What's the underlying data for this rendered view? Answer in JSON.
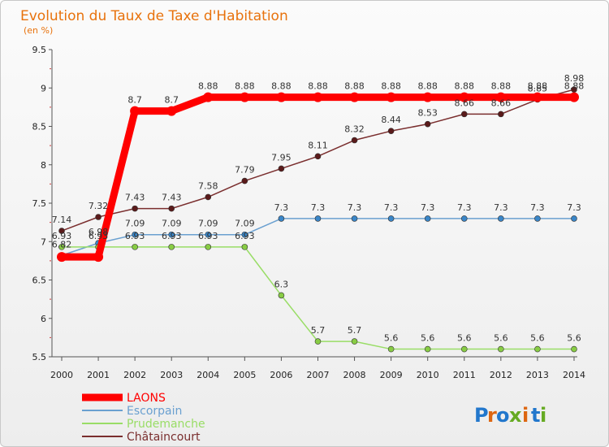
{
  "chart_data": {
    "type": "line",
    "title": "Evolution du Taux de Taxe d'Habitation",
    "subtitle": "(en %)",
    "xlabel": "",
    "ylabel": "",
    "x": [
      2000,
      2001,
      2002,
      2003,
      2004,
      2005,
      2006,
      2007,
      2008,
      2009,
      2010,
      2011,
      2012,
      2013,
      2014
    ],
    "ylim": [
      5.5,
      9.5
    ],
    "yticks": [
      "5.5",
      "6",
      "6.5",
      "7",
      "7.5",
      "8",
      "8.5",
      "9",
      "9.5"
    ],
    "grid": false,
    "legend_position": "bottom-left",
    "series": [
      {
        "name": "LAONS",
        "color": "#ff0000",
        "marker_color": "#ff0000",
        "values": [
          6.8,
          6.8,
          8.7,
          8.7,
          8.88,
          8.88,
          8.88,
          8.88,
          8.88,
          8.88,
          8.88,
          8.88,
          8.88,
          8.88,
          8.88
        ],
        "labels": [
          "",
          "",
          "8.7",
          "8.7",
          "8.88",
          "8.88",
          "8.88",
          "8.88",
          "8.88",
          "8.88",
          "8.88",
          "8.88",
          "8.88",
          "8.88",
          "8.88"
        ]
      },
      {
        "name": "Escorpain",
        "color": "#6aa0d0",
        "marker_color": "#3a86c8",
        "values": [
          6.82,
          6.98,
          7.09,
          7.09,
          7.09,
          7.09,
          7.3,
          7.3,
          7.3,
          7.3,
          7.3,
          7.3,
          7.3,
          7.3,
          7.3
        ],
        "labels": [
          "6.82",
          "6.98",
          "7.09",
          "7.09",
          "7.09",
          "7.09",
          "7.3",
          "7.3",
          "7.3",
          "7.3",
          "7.3",
          "7.3",
          "7.3",
          "7.3",
          "7.3"
        ]
      },
      {
        "name": "Prudemanche",
        "color": "#99dd66",
        "marker_color": "#88cc44",
        "values": [
          6.93,
          6.93,
          6.93,
          6.93,
          6.93,
          6.93,
          6.3,
          5.7,
          5.7,
          5.6,
          5.6,
          5.6,
          5.6,
          5.6,
          5.6
        ],
        "labels": [
          "6.93",
          "6.93",
          "6.93",
          "6.93",
          "6.93",
          "6.93",
          "6.3",
          "5.7",
          "5.7",
          "5.6",
          "5.6",
          "5.6",
          "5.6",
          "5.6",
          "5.6"
        ]
      },
      {
        "name": "Châtaincourt",
        "color": "#7a2e2e",
        "marker_color": "#5a1a1a",
        "values": [
          7.14,
          7.32,
          7.43,
          7.43,
          7.58,
          7.79,
          7.95,
          8.11,
          8.32,
          8.44,
          8.53,
          8.66,
          8.66,
          8.85,
          8.98
        ],
        "labels": [
          "7.14",
          "7.32",
          "7.43",
          "7.43",
          "7.58",
          "7.79",
          "7.95",
          "8.11",
          "8.32",
          "8.44",
          "8.53",
          "8.66",
          "8.66",
          "8.85",
          "8.98"
        ]
      }
    ]
  },
  "logo": {
    "letters": [
      "P",
      "r",
      "o",
      "x",
      "i",
      "t",
      "i"
    ],
    "colors": [
      "#2277cc",
      "#dd6611",
      "#2277cc",
      "#66aa22",
      "#dd6611",
      "#2277cc",
      "#66aa22"
    ]
  }
}
